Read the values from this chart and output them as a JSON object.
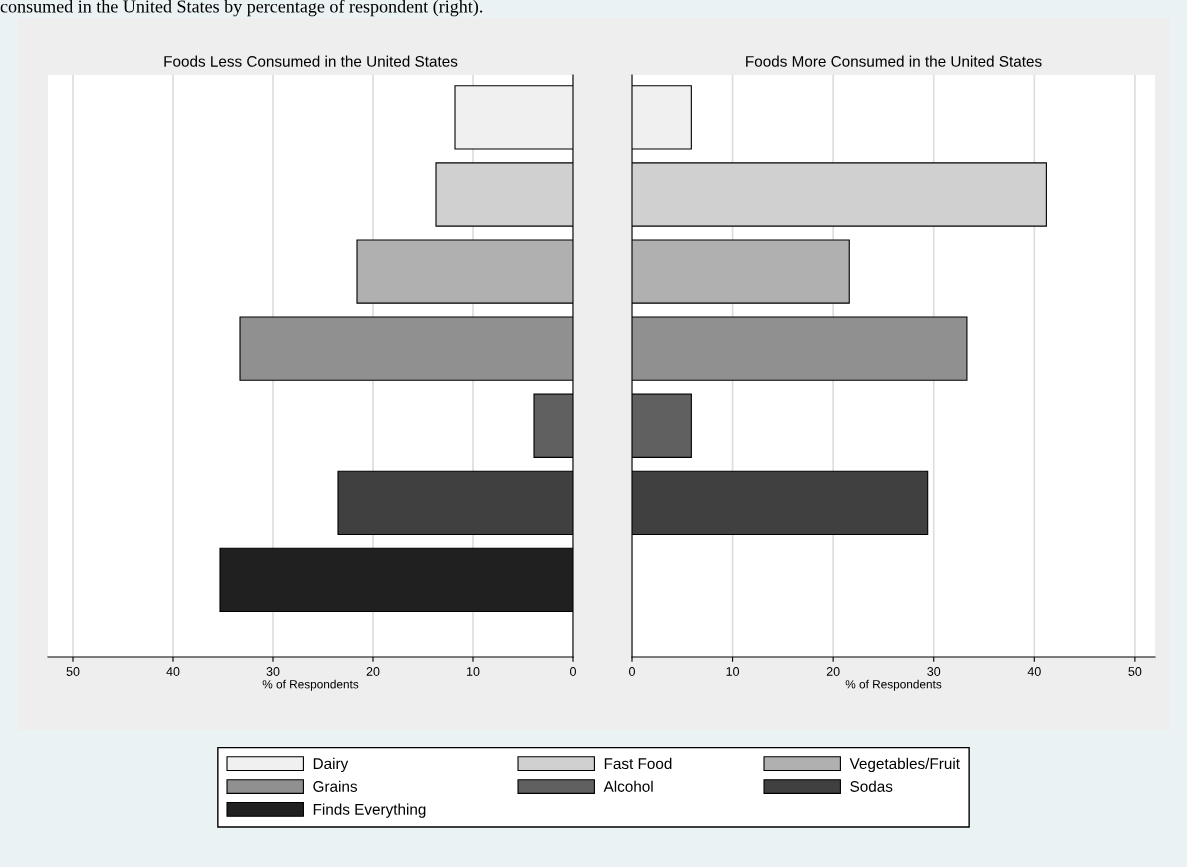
{
  "chart_data": [
    {
      "type": "bar",
      "orientation": "horizontal",
      "stacked": true,
      "title": "Foods Less Consumed in the United States",
      "xlabel": "% of Respondents",
      "annotations": [
        "consumed in the United States by percentage of respondent (right)."
      ],
      "categories": [
        null,
        null,
        null,
        null,
        null,
        null,
        null
      ],
      "series": [
        {
          "name": "Dairy",
          "color": "#f0f0f0",
          "values": [
            11.8,
            null,
            null,
            null,
            null,
            null,
            null
          ]
        },
        {
          "name": "Fast Food",
          "color": "#d0d0d0",
          "values": [
            null,
            13.7,
            null,
            null,
            null,
            null,
            null
          ]
        },
        {
          "name": "Vegetables/Fruit",
          "color": "#b0b0b0",
          "values": [
            null,
            null,
            21.6,
            null,
            null,
            null,
            null
          ]
        },
        {
          "name": "Grains",
          "color": "#909090",
          "values": [
            null,
            null,
            null,
            33.3,
            null,
            null,
            null
          ]
        },
        {
          "name": "Alcohol",
          "color": "#606060",
          "values": [
            null,
            null,
            null,
            null,
            3.9,
            null,
            null
          ]
        },
        {
          "name": "Sodas",
          "color": "#404040",
          "values": [
            null,
            null,
            null,
            null,
            null,
            23.5,
            null
          ]
        },
        {
          "name": "Finds Everything",
          "color": "#202020",
          "values": [
            null,
            null,
            null,
            null,
            null,
            null,
            35.3
          ]
        }
      ],
      "xlim": [
        52.5,
        0
      ],
      "xticks": [
        50,
        40,
        30,
        20,
        10,
        0
      ],
      "grid": "x",
      "tick_labels": "x",
      "legend": "bottom"
    },
    {
      "type": "bar",
      "orientation": "horizontal",
      "stacked": true,
      "title": "Foods More Consumed in the United States",
      "xlabel": "% of Respondents",
      "categories": [
        null,
        null,
        null,
        null,
        null,
        null,
        null
      ],
      "series": [
        {
          "color": "#f0f0f0",
          "values": [
            5.9,
            null,
            null,
            null,
            null,
            null,
            null
          ]
        },
        {
          "color": "#d0d0d0",
          "values": [
            null,
            41.2,
            null,
            null,
            null,
            null,
            null
          ]
        },
        {
          "color": "#b0b0b0",
          "values": [
            null,
            null,
            21.6,
            null,
            null,
            null,
            null
          ]
        },
        {
          "color": "#909090",
          "values": [
            null,
            null,
            null,
            33.3,
            null,
            null,
            null
          ]
        },
        {
          "color": "#606060",
          "values": [
            null,
            null,
            null,
            null,
            5.9,
            null,
            null
          ]
        },
        {
          "color": "#404040",
          "values": [
            null,
            null,
            null,
            null,
            null,
            29.4,
            null
          ]
        },
        {
          "color": "#202020",
          "values": [
            null,
            null,
            null,
            null,
            null,
            null,
            0
          ]
        }
      ],
      "xlim": [
        0,
        52
      ],
      "xticks": [
        0,
        10,
        20,
        30,
        40,
        50
      ],
      "grid": "x",
      "tick_labels": "x"
    }
  ]
}
